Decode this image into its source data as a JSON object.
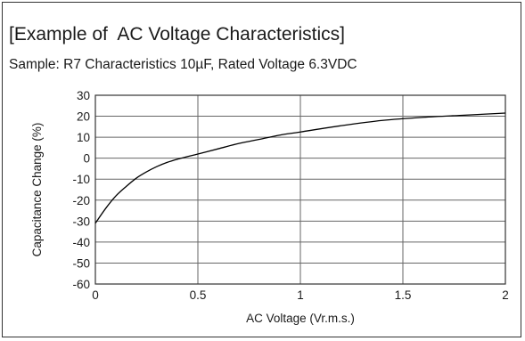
{
  "chart_data": {
    "type": "line",
    "title": "[Example of  AC Voltage Characteristics]",
    "subtitle": "Sample: R7 Characteristics 10µF, Rated Voltage 6.3VDC",
    "xlabel": "AC Voltage (Vr.m.s.)",
    "ylabel": "Capacitance Change (%)",
    "xlim": [
      0,
      2
    ],
    "ylim": [
      -60,
      30
    ],
    "x_ticks": [
      "0",
      "0.5",
      "1",
      "1.5",
      "2"
    ],
    "y_ticks": [
      "30",
      "20",
      "10",
      "0",
      "-10",
      "-20",
      "-30",
      "-40",
      "-50",
      "-60"
    ],
    "grid": true,
    "series": [
      {
        "x": [
          0,
          0.05,
          0.1,
          0.15,
          0.2,
          0.25,
          0.3,
          0.35,
          0.4,
          0.5,
          0.6,
          0.7,
          0.8,
          0.9,
          1.0,
          1.2,
          1.4,
          1.6,
          1.8,
          2.0
        ],
        "values": [
          -31,
          -24,
          -18,
          -13.5,
          -9.5,
          -6.5,
          -4,
          -2,
          -0.5,
          2,
          4.5,
          7,
          9,
          11,
          12.5,
          15.5,
          18,
          19.5,
          20.5,
          21.5
        ]
      }
    ]
  },
  "colors": {
    "line": "#000000",
    "grid": "#666666",
    "frame": "#333333"
  }
}
